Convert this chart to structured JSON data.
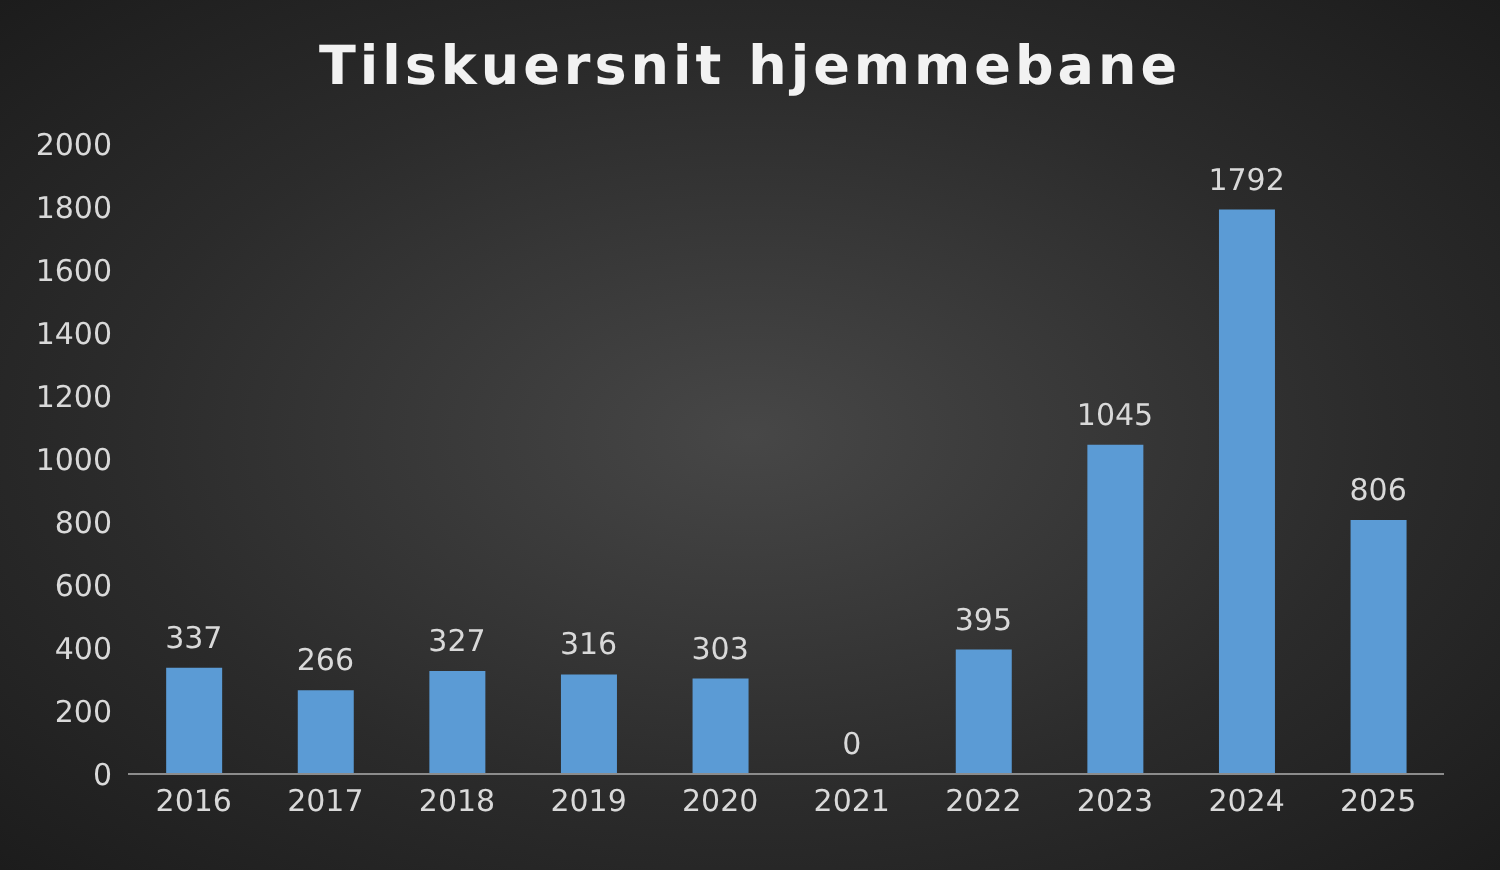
{
  "chart_data": {
    "type": "bar",
    "title": "Tilskuersnit hjemmebane",
    "categories": [
      "2016",
      "2017",
      "2018",
      "2019",
      "2020",
      "2021",
      "2022",
      "2023",
      "2024",
      "2025"
    ],
    "values": [
      337,
      266,
      327,
      316,
      303,
      0,
      395,
      1045,
      1792,
      806
    ],
    "color": "#5b9bd5",
    "ylim": [
      0,
      2000
    ],
    "yticks": [
      0,
      200,
      400,
      600,
      800,
      1000,
      1200,
      1400,
      1600,
      1800,
      2000
    ],
    "data_labels": true
  }
}
